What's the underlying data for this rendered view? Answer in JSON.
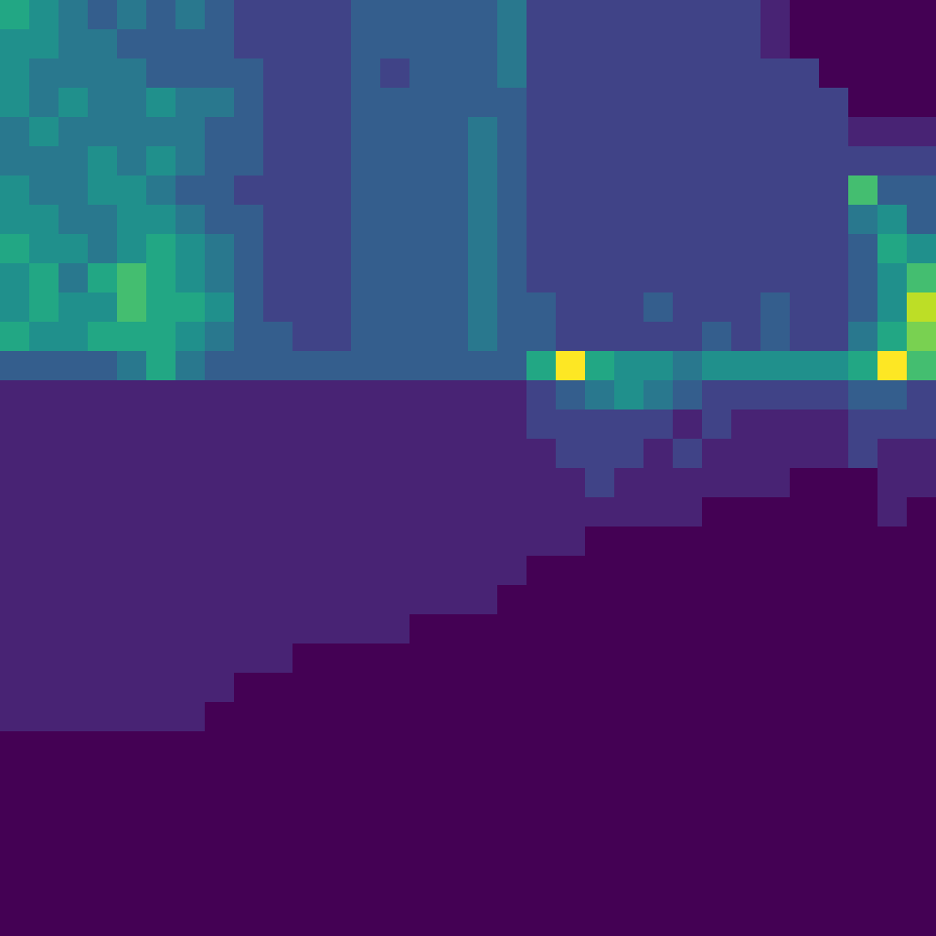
{
  "chart_data": {
    "type": "heatmap",
    "color": "viridis",
    "tick_labels": false,
    "cells": [
      [
        6,
        5,
        4,
        3,
        4,
        3,
        4,
        3,
        2,
        2,
        2,
        2,
        3,
        3,
        3,
        3,
        3,
        4,
        2,
        2,
        2,
        2,
        2,
        2,
        2,
        2,
        1,
        0,
        0,
        0,
        0,
        0
      ],
      [
        5,
        5,
        4,
        4,
        3,
        3,
        3,
        3,
        2,
        2,
        2,
        2,
        3,
        3,
        3,
        3,
        3,
        4,
        2,
        2,
        2,
        2,
        2,
        2,
        2,
        2,
        1,
        0,
        0,
        0,
        0,
        0
      ],
      [
        5,
        4,
        4,
        4,
        4,
        3,
        3,
        3,
        3,
        2,
        2,
        2,
        3,
        2,
        3,
        3,
        3,
        4,
        2,
        2,
        2,
        2,
        2,
        2,
        2,
        2,
        2,
        2,
        0,
        0,
        0,
        0
      ],
      [
        5,
        4,
        5,
        4,
        4,
        5,
        4,
        4,
        3,
        2,
        2,
        2,
        3,
        3,
        3,
        3,
        3,
        3,
        2,
        2,
        2,
        2,
        2,
        2,
        2,
        2,
        2,
        2,
        2,
        0,
        0,
        0
      ],
      [
        4,
        5,
        4,
        4,
        4,
        4,
        4,
        3,
        3,
        2,
        2,
        2,
        3,
        3,
        3,
        3,
        4,
        3,
        2,
        2,
        2,
        2,
        2,
        2,
        2,
        2,
        2,
        2,
        2,
        1,
        1,
        1
      ],
      [
        4,
        4,
        4,
        5,
        4,
        5,
        4,
        3,
        3,
        2,
        2,
        2,
        3,
        3,
        3,
        3,
        4,
        3,
        2,
        2,
        2,
        2,
        2,
        2,
        2,
        2,
        2,
        2,
        2,
        2,
        2,
        2
      ],
      [
        5,
        4,
        4,
        5,
        5,
        4,
        3,
        3,
        2,
        2,
        2,
        2,
        3,
        3,
        3,
        3,
        4,
        3,
        2,
        2,
        2,
        2,
        2,
        2,
        2,
        2,
        2,
        2,
        2,
        7,
        3,
        3
      ],
      [
        5,
        5,
        4,
        4,
        5,
        5,
        4,
        3,
        3,
        2,
        2,
        2,
        3,
        3,
        3,
        3,
        4,
        3,
        2,
        2,
        2,
        2,
        2,
        2,
        2,
        2,
        2,
        2,
        2,
        4,
        5,
        3
      ],
      [
        6,
        5,
        5,
        4,
        5,
        6,
        5,
        4,
        3,
        2,
        2,
        2,
        3,
        3,
        3,
        3,
        4,
        3,
        2,
        2,
        2,
        2,
        2,
        2,
        2,
        2,
        2,
        2,
        2,
        3,
        6,
        5
      ],
      [
        5,
        6,
        4,
        6,
        7,
        6,
        5,
        4,
        3,
        2,
        2,
        2,
        3,
        3,
        3,
        3,
        4,
        3,
        2,
        2,
        2,
        2,
        2,
        2,
        2,
        2,
        2,
        2,
        2,
        3,
        5,
        7
      ],
      [
        5,
        6,
        5,
        5,
        7,
        6,
        6,
        5,
        3,
        2,
        2,
        2,
        3,
        3,
        3,
        3,
        4,
        3,
        3,
        2,
        2,
        2,
        3,
        2,
        2,
        2,
        3,
        2,
        2,
        3,
        5,
        9
      ],
      [
        6,
        5,
        5,
        6,
        6,
        6,
        5,
        4,
        3,
        3,
        2,
        2,
        3,
        3,
        3,
        3,
        4,
        3,
        3,
        2,
        2,
        2,
        2,
        2,
        3,
        2,
        3,
        2,
        2,
        4,
        6,
        8
      ],
      [
        3,
        3,
        3,
        3,
        4,
        6,
        4,
        3,
        3,
        3,
        3,
        3,
        3,
        3,
        3,
        3,
        3,
        3,
        6,
        10,
        6,
        5,
        5,
        4,
        5,
        5,
        5,
        5,
        5,
        6,
        10,
        7
      ],
      [
        1,
        1,
        1,
        1,
        1,
        1,
        1,
        1,
        1,
        1,
        1,
        1,
        1,
        1,
        1,
        1,
        1,
        1,
        2,
        3,
        4,
        5,
        4,
        3,
        2,
        2,
        2,
        2,
        2,
        3,
        3,
        2
      ],
      [
        1,
        1,
        1,
        1,
        1,
        1,
        1,
        1,
        1,
        1,
        1,
        1,
        1,
        1,
        1,
        1,
        1,
        1,
        2,
        2,
        2,
        2,
        2,
        1,
        2,
        1,
        1,
        1,
        1,
        2,
        2,
        2
      ],
      [
        1,
        1,
        1,
        1,
        1,
        1,
        1,
        1,
        1,
        1,
        1,
        1,
        1,
        1,
        1,
        1,
        1,
        1,
        1,
        2,
        2,
        2,
        1,
        2,
        1,
        1,
        1,
        1,
        1,
        2,
        1,
        1
      ],
      [
        1,
        1,
        1,
        1,
        1,
        1,
        1,
        1,
        1,
        1,
        1,
        1,
        1,
        1,
        1,
        1,
        1,
        1,
        1,
        1,
        2,
        1,
        1,
        1,
        1,
        1,
        1,
        0,
        0,
        0,
        1,
        1
      ],
      [
        1,
        1,
        1,
        1,
        1,
        1,
        1,
        1,
        1,
        1,
        1,
        1,
        1,
        1,
        1,
        1,
        1,
        1,
        1,
        1,
        1,
        1,
        1,
        1,
        0,
        0,
        0,
        0,
        0,
        0,
        1,
        0
      ],
      [
        1,
        1,
        1,
        1,
        1,
        1,
        1,
        1,
        1,
        1,
        1,
        1,
        1,
        1,
        1,
        1,
        1,
        1,
        1,
        1,
        0,
        0,
        0,
        0,
        0,
        0,
        0,
        0,
        0,
        0,
        0,
        0
      ],
      [
        1,
        1,
        1,
        1,
        1,
        1,
        1,
        1,
        1,
        1,
        1,
        1,
        1,
        1,
        1,
        1,
        1,
        1,
        0,
        0,
        0,
        0,
        0,
        0,
        0,
        0,
        0,
        0,
        0,
        0,
        0,
        0
      ],
      [
        1,
        1,
        1,
        1,
        1,
        1,
        1,
        1,
        1,
        1,
        1,
        1,
        1,
        1,
        1,
        1,
        1,
        0,
        0,
        0,
        0,
        0,
        0,
        0,
        0,
        0,
        0,
        0,
        0,
        0,
        0,
        0
      ],
      [
        1,
        1,
        1,
        1,
        1,
        1,
        1,
        1,
        1,
        1,
        1,
        1,
        1,
        1,
        0,
        0,
        0,
        0,
        0,
        0,
        0,
        0,
        0,
        0,
        0,
        0,
        0,
        0,
        0,
        0,
        0,
        0
      ],
      [
        1,
        1,
        1,
        1,
        1,
        1,
        1,
        1,
        1,
        1,
        0,
        0,
        0,
        0,
        0,
        0,
        0,
        0,
        0,
        0,
        0,
        0,
        0,
        0,
        0,
        0,
        0,
        0,
        0,
        0,
        0,
        0
      ],
      [
        1,
        1,
        1,
        1,
        1,
        1,
        1,
        1,
        0,
        0,
        0,
        0,
        0,
        0,
        0,
        0,
        0,
        0,
        0,
        0,
        0,
        0,
        0,
        0,
        0,
        0,
        0,
        0,
        0,
        0,
        0,
        0
      ],
      [
        1,
        1,
        1,
        1,
        1,
        1,
        1,
        0,
        0,
        0,
        0,
        0,
        0,
        0,
        0,
        0,
        0,
        0,
        0,
        0,
        0,
        0,
        0,
        0,
        0,
        0,
        0,
        0,
        0,
        0,
        0,
        0
      ],
      [
        0,
        0,
        0,
        0,
        0,
        0,
        0,
        0,
        0,
        0,
        0,
        0,
        0,
        0,
        0,
        0,
        0,
        0,
        0,
        0,
        0,
        0,
        0,
        0,
        0,
        0,
        0,
        0,
        0,
        0,
        0,
        0
      ],
      [
        0,
        0,
        0,
        0,
        0,
        0,
        0,
        0,
        0,
        0,
        0,
        0,
        0,
        0,
        0,
        0,
        0,
        0,
        0,
        0,
        0,
        0,
        0,
        0,
        0,
        0,
        0,
        0,
        0,
        0,
        0,
        0
      ],
      [
        0,
        0,
        0,
        0,
        0,
        0,
        0,
        0,
        0,
        0,
        0,
        0,
        0,
        0,
        0,
        0,
        0,
        0,
        0,
        0,
        0,
        0,
        0,
        0,
        0,
        0,
        0,
        0,
        0,
        0,
        0,
        0
      ],
      [
        0,
        0,
        0,
        0,
        0,
        0,
        0,
        0,
        0,
        0,
        0,
        0,
        0,
        0,
        0,
        0,
        0,
        0,
        0,
        0,
        0,
        0,
        0,
        0,
        0,
        0,
        0,
        0,
        0,
        0,
        0,
        0
      ],
      [
        0,
        0,
        0,
        0,
        0,
        0,
        0,
        0,
        0,
        0,
        0,
        0,
        0,
        0,
        0,
        0,
        0,
        0,
        0,
        0,
        0,
        0,
        0,
        0,
        0,
        0,
        0,
        0,
        0,
        0,
        0,
        0
      ],
      [
        0,
        0,
        0,
        0,
        0,
        0,
        0,
        0,
        0,
        0,
        0,
        0,
        0,
        0,
        0,
        0,
        0,
        0,
        0,
        0,
        0,
        0,
        0,
        0,
        0,
        0,
        0,
        0,
        0,
        0,
        0,
        0
      ],
      [
        0,
        0,
        0,
        0,
        0,
        0,
        0,
        0,
        0,
        0,
        0,
        0,
        0,
        0,
        0,
        0,
        0,
        0,
        0,
        0,
        0,
        0,
        0,
        0,
        0,
        0,
        0,
        0,
        0,
        0,
        0,
        0
      ]
    ]
  }
}
